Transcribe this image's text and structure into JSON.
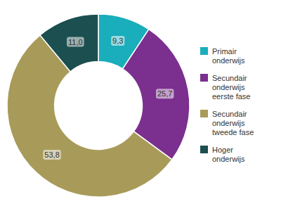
{
  "chart_data": {
    "type": "donut",
    "categories": [
      "Primair\nonderwijs",
      "Secundair\nonderwijs\neerste fase",
      "Secundair\nonderwijs\ntweede fase",
      "Hoger\nonderwijs"
    ],
    "values": [
      9.3,
      25.7,
      53.8,
      11.0
    ],
    "value_labels": [
      "9,3",
      "25,7",
      "53,8",
      "11,0"
    ],
    "colors": [
      "#1AADBB",
      "#7B2F8E",
      "#A89B5A",
      "#1C4F4F"
    ],
    "data_labels": true,
    "legend": "right"
  }
}
